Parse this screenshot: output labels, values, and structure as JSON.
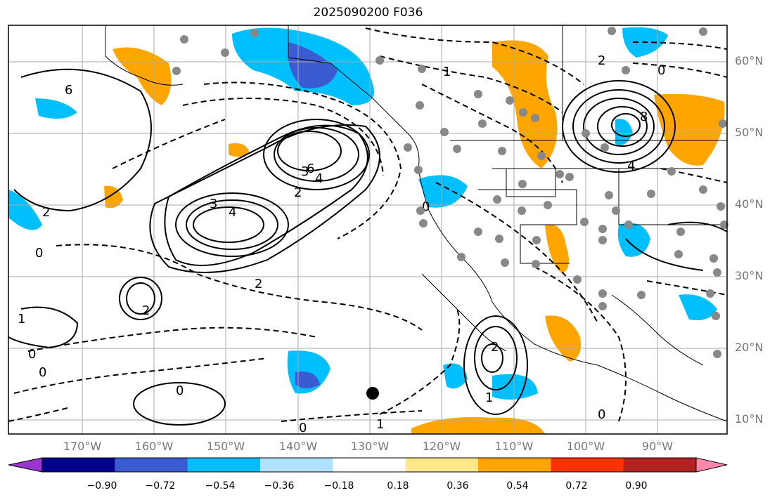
{
  "title": "2025090200 F036",
  "latitude_labels": [
    "60°N",
    "50°N",
    "40°N",
    "30°N",
    "20°N",
    "10°N"
  ],
  "longitude_labels": [
    "170°W",
    "160°W",
    "150°W",
    "140°W",
    "130°W",
    "120°W",
    "110°W",
    "100°W",
    "90°W"
  ],
  "colorbar": {
    "ticks": [
      "−0.90",
      "−0.72",
      "−0.54",
      "−0.36",
      "−0.18",
      "0.18",
      "0.36",
      "0.54",
      "0.72",
      "0.90"
    ],
    "colors": [
      "#9a35d0",
      "#00008b",
      "#3a5bd1",
      "#00bfff",
      "#b0e2ff",
      "#ffffff",
      "#ffe88a",
      "#ffa500",
      "#ff3300",
      "#b22222",
      "#ff88aa"
    ]
  },
  "contour_labels": [
    "6",
    "1",
    "2",
    "0",
    "3",
    "4",
    "2",
    "4",
    "3",
    "6",
    "0",
    "0",
    "0",
    "1",
    "2",
    "2",
    "8",
    "4",
    "0",
    "1",
    "2",
    "2",
    "0",
    "0",
    "0",
    "1"
  ],
  "colors": {
    "shading_orange": "#ffa500",
    "shading_blue": "#00bfff",
    "shading_deep_blue": "#3a5bd1",
    "station_dot": "#888888"
  }
}
